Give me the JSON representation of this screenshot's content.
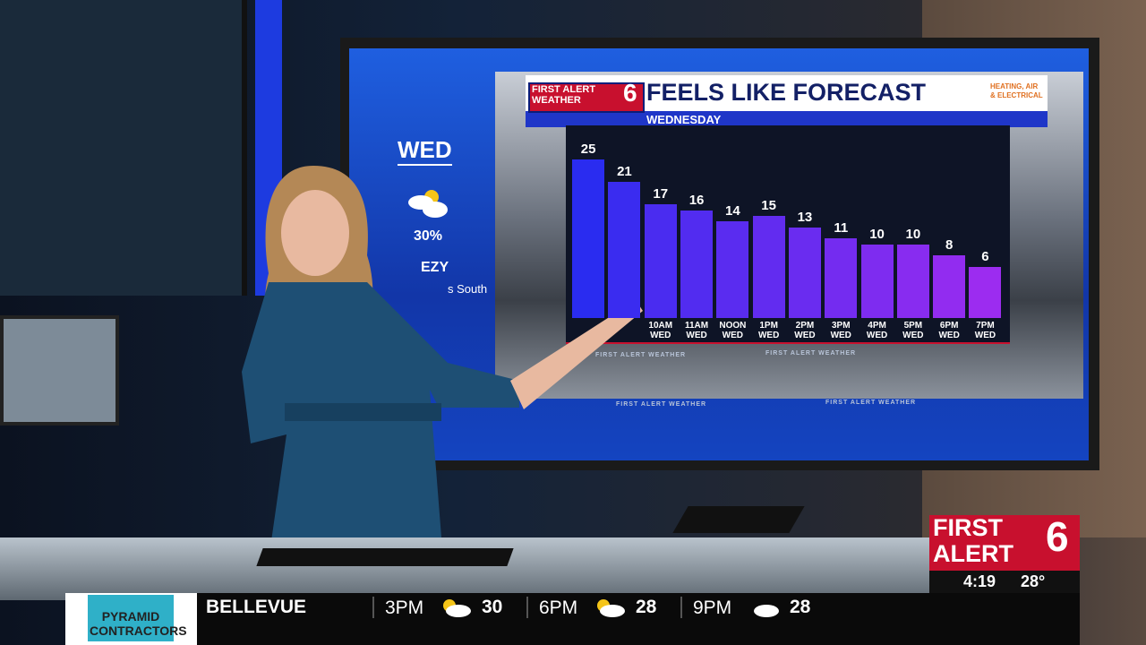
{
  "chart_data": {
    "type": "bar",
    "title": "FEELS LIKE FORECAST",
    "subtitle": "WEDNESDAY",
    "categories": [
      null,
      null,
      "10AM\nWED",
      "11AM\nWED",
      "NOON\nWED",
      "1PM\nWED",
      "2PM\nWED",
      "3PM\nWED",
      "4PM\nWED",
      "5PM\nWED",
      "6PM\nWED",
      "7PM\nWED"
    ],
    "values": [
      25,
      21,
      17,
      16,
      14,
      15,
      13,
      11,
      10,
      10,
      8,
      6
    ],
    "colors": [
      "#2a2cf0",
      "#3a2cf0",
      "#4a2cf0",
      "#522cf0",
      "#5a2cf0",
      "#622cf0",
      "#6a2cf0",
      "#742cf0",
      "#7e2cf0",
      "#882cf0",
      "#922cf0",
      "#9c2cf0"
    ],
    "ylim": [
      -3,
      27
    ]
  },
  "screen": {
    "logo": "FIRST ALERT\nWEATHER",
    "logo_number": "6",
    "sponsor": "HEATING, AIR\n& ELECTRICAL",
    "watermark": "FIRST ALERT WEATHER",
    "left_panel": {
      "day": "WED",
      "precip": "30%",
      "wind": "EZY",
      "direction": "s South"
    }
  },
  "bug": {
    "logo": "FIRST\nALERT",
    "logo_number": "6",
    "time": "4:19",
    "temp": "28°"
  },
  "lower_third": {
    "sponsor": "PYRAMID\nCONTRACTORS",
    "location": "BELLEVUE",
    "slots": [
      {
        "time": "3PM",
        "temp": "30",
        "icon": "partly-sunny"
      },
      {
        "time": "6PM",
        "temp": "28",
        "icon": "partly-sunny"
      },
      {
        "time": "9PM",
        "temp": "28",
        "icon": "cloudy"
      }
    ]
  }
}
